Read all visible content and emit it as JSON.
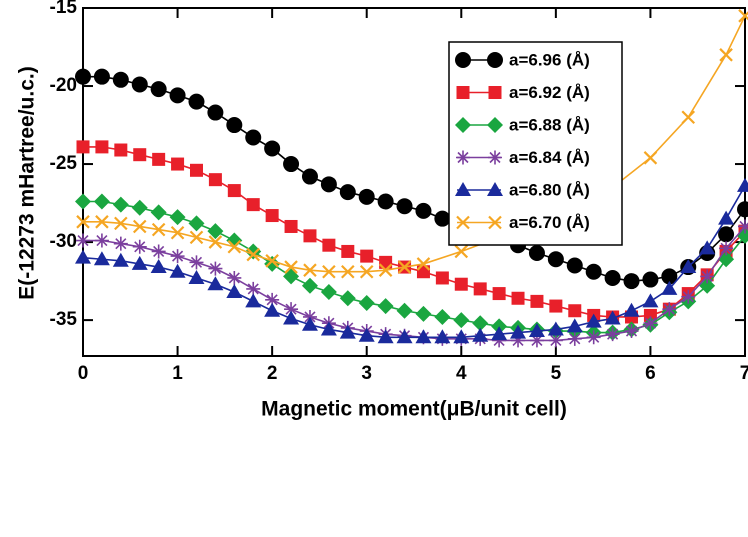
{
  "chart_data": {
    "type": "line",
    "xlabel": "Magnetic moment(μB/unit cell)",
    "ylabel": "E(-12273 mHartree/u.c.)",
    "x": [
      0,
      0.2,
      0.4,
      0.6,
      0.8,
      1,
      1.2,
      1.4,
      1.6,
      1.8,
      2,
      2.2,
      2.4,
      2.6,
      2.8,
      3,
      3.2,
      3.4,
      3.6,
      3.8,
      4,
      4.2,
      4.4,
      4.6,
      4.8,
      5,
      5.2,
      5.4,
      5.6,
      5.8,
      6,
      6.2,
      6.4,
      6.6,
      6.8,
      7
    ],
    "xlim": [
      0,
      7
    ],
    "xticks": [
      0,
      1,
      2,
      3,
      4,
      5,
      6,
      7
    ],
    "ylim": [
      -37.3,
      -15
    ],
    "yticks": [
      -15,
      -20,
      -25,
      -30,
      -35
    ],
    "legend": "upper right",
    "series": [
      {
        "name": "a=6.96 (Å)",
        "color": "#000000",
        "marker": "circle",
        "values": [
          -19.4,
          -19.4,
          -19.6,
          -19.9,
          -20.2,
          -20.6,
          -21.0,
          -21.7,
          -22.5,
          -23.3,
          -24.0,
          -25.0,
          -25.8,
          -26.3,
          -26.8,
          -27.1,
          -27.4,
          -27.7,
          -28.0,
          -28.5,
          -28.9,
          -29.3,
          -29.7,
          -30.2,
          -30.7,
          -31.1,
          -31.5,
          -31.9,
          -32.3,
          -32.5,
          -32.4,
          -32.2,
          -31.6,
          -30.7,
          -29.5,
          -27.9
        ]
      },
      {
        "name": "a=6.92 (Å)",
        "color": "#e8202a",
        "marker": "square",
        "values": [
          -23.9,
          -23.9,
          -24.1,
          -24.4,
          -24.7,
          -25.0,
          -25.4,
          -26.0,
          -26.7,
          -27.6,
          -28.3,
          -29.0,
          -29.6,
          -30.2,
          -30.6,
          -30.9,
          -31.3,
          -31.6,
          -31.9,
          -32.3,
          -32.7,
          -33.0,
          -33.3,
          -33.6,
          -33.8,
          -34.1,
          -34.4,
          -34.7,
          -34.8,
          -34.8,
          -34.7,
          -34.3,
          -33.3,
          -32.1,
          -30.6,
          -29.3
        ]
      },
      {
        "name": "a=6.88 (Å)",
        "color": "#1aa640",
        "marker": "diamond",
        "values": [
          -27.4,
          -27.4,
          -27.6,
          -27.8,
          -28.1,
          -28.4,
          -28.8,
          -29.3,
          -29.9,
          -30.6,
          -31.4,
          -32.2,
          -32.8,
          -33.2,
          -33.6,
          -33.9,
          -34.1,
          -34.4,
          -34.6,
          -34.8,
          -35.0,
          -35.2,
          -35.4,
          -35.5,
          -35.6,
          -35.7,
          -35.7,
          -35.8,
          -35.8,
          -35.6,
          -35.3,
          -34.5,
          -33.8,
          -32.8,
          -31.1,
          -29.6
        ]
      },
      {
        "name": "a=6.84 (Å)",
        "color": "#7b3f9e",
        "marker": "star",
        "values": [
          -29.9,
          -29.9,
          -30.1,
          -30.3,
          -30.6,
          -30.9,
          -31.3,
          -31.7,
          -32.3,
          -33.0,
          -33.7,
          -34.3,
          -34.8,
          -35.2,
          -35.5,
          -35.7,
          -35.9,
          -36.0,
          -36.1,
          -36.2,
          -36.2,
          -36.2,
          -36.3,
          -36.3,
          -36.3,
          -36.3,
          -36.2,
          -36.1,
          -35.9,
          -35.7,
          -35.2,
          -34.3,
          -33.5,
          -32.2,
          -30.4,
          -29.0
        ]
      },
      {
        "name": "a=6.80 (Å)",
        "color": "#1a2a9c",
        "marker": "triangle",
        "values": [
          -31.0,
          -31.1,
          -31.2,
          -31.4,
          -31.6,
          -31.9,
          -32.3,
          -32.7,
          -33.2,
          -33.8,
          -34.4,
          -34.9,
          -35.3,
          -35.6,
          -35.8,
          -36.0,
          -36.1,
          -36.1,
          -36.1,
          -36.1,
          -36.1,
          -36.0,
          -35.9,
          -35.8,
          -35.7,
          -35.6,
          -35.4,
          -35.1,
          -34.9,
          -34.4,
          -33.8,
          -33.0,
          -31.6,
          -30.4,
          -28.5,
          -26.4
        ]
      },
      {
        "name": "a=6.70 (Å)",
        "color": "#f5a623",
        "marker": "x",
        "x": [
          0,
          0.2,
          0.4,
          0.6,
          0.8,
          1,
          1.2,
          1.4,
          1.6,
          1.8,
          2,
          2.2,
          2.4,
          2.6,
          2.8,
          3,
          3.2,
          3.4,
          3.6,
          4,
          4.4,
          4.8,
          5.2,
          5.6,
          6,
          6.4,
          6.8,
          7
        ],
        "values": [
          -28.7,
          -28.7,
          -28.8,
          -29.0,
          -29.2,
          -29.4,
          -29.7,
          -30.0,
          -30.3,
          -30.8,
          -31.2,
          -31.6,
          -31.8,
          -31.9,
          -31.9,
          -31.9,
          -31.8,
          -31.6,
          -31.4,
          -30.6,
          -29.7,
          -28.8,
          -27.7,
          -26.5,
          -24.6,
          -22.0,
          -18.0,
          -15.5
        ]
      }
    ]
  }
}
